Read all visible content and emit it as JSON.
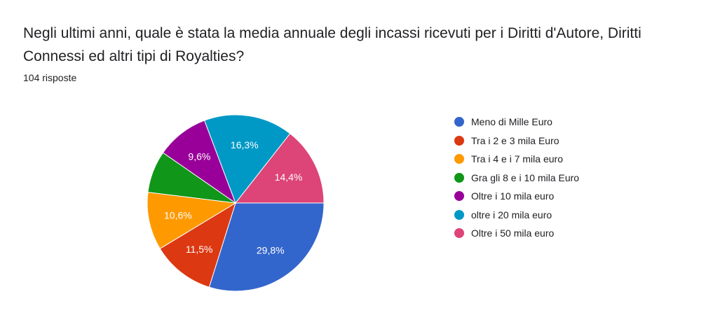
{
  "question": {
    "title": "Negli ultimi anni, quale è stata la media annuale degli incassi ricevuti per i Diritti d'Autore, Diritti Connessi ed altri tipi di Royalties?",
    "responses": "104 risposte"
  },
  "chart_data": {
    "type": "pie",
    "title": "Negli ultimi anni, quale è stata la media annuale degli incassi ricevuti per i Diritti d'Autore, Diritti Connessi ed altri tipi di Royalties?",
    "subtitle": "104 risposte",
    "legend_position": "right",
    "slices": [
      {
        "label": "Meno di Mille Euro",
        "value": 29.8,
        "display": "29,8%",
        "color": "#3366cc"
      },
      {
        "label": "Tra i 2 e 3 mila Euro",
        "value": 11.5,
        "display": "11,5%",
        "color": "#dc3912"
      },
      {
        "label": "Tra i 4 e i 7 mila euro",
        "value": 10.6,
        "display": "10,6%",
        "color": "#ff9900"
      },
      {
        "label": "Gra gli 8 e i 10 mila Euro",
        "value": 7.7,
        "display": "",
        "color": "#109618"
      },
      {
        "label": "Oltre i 10 mila euro",
        "value": 9.6,
        "display": "9,6%",
        "color": "#990099"
      },
      {
        "label": "oltre i 20 mila euro",
        "value": 16.3,
        "display": "16,3%",
        "color": "#0099c6"
      },
      {
        "label": "Oltre i 50 mila euro",
        "value": 14.4,
        "display": "14,4%",
        "color": "#dd4477"
      }
    ]
  }
}
